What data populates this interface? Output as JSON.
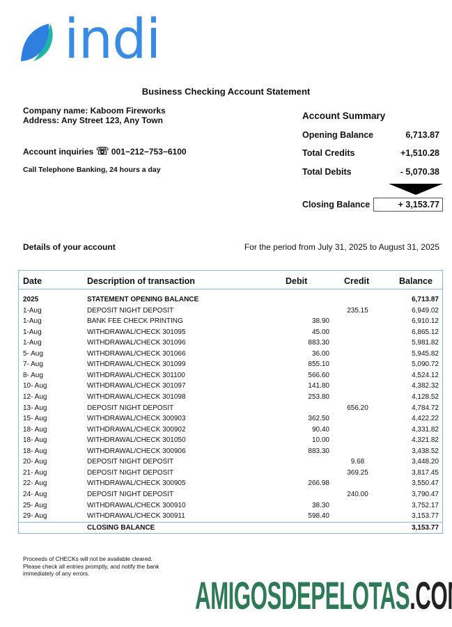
{
  "brand": {
    "name": "indi",
    "leaf_color": "#2f7fe0",
    "leaf_accent": "#1fb5a8",
    "text_color": "#3a8be3"
  },
  "title": "Business Checking Account Statement",
  "company": {
    "name_line": "Company name: Kaboom Fireworks",
    "address_line": "Address: Any Street 123, Any Town"
  },
  "inquiries": {
    "label": "Account inquiries",
    "icon": "telephone-icon",
    "phone": "001−212−753−6100",
    "note": "Call Telephone Banking, 24 hours a day"
  },
  "summary": {
    "heading": "Account Summary",
    "opening_label": "Opening Balance",
    "opening_value": "6,713.87",
    "credits_label": "Total Credits",
    "credits_value": "+1,510.28",
    "debits_label": "Total Debits",
    "debits_value": "- 5,070.38",
    "closing_label": "Closing Balance",
    "closing_value": "+ 3,153.77"
  },
  "details": {
    "heading": "Details of your account",
    "period": "For the period from July 31, 2025 to August 31, 2025"
  },
  "table": {
    "headers": {
      "date": "Date",
      "desc": "Description of transaction",
      "debit": "Debit",
      "credit": "Credit",
      "balance": "Balance"
    },
    "opening": {
      "date": "2025",
      "desc": "STATEMENT OPENING BALANCE",
      "balance": "6,713.87"
    },
    "rows": [
      {
        "date": "1-Aug",
        "desc": "DEPOSIT NIGHT DEPOSIT",
        "debit": "",
        "credit": "235.15",
        "balance": "6,949.02"
      },
      {
        "date": "1-Aug",
        "desc": "BANK FEE CHECK PRINTING",
        "debit": "38.90",
        "credit": "",
        "balance": "6,910.12"
      },
      {
        "date": "1-Aug",
        "desc": "WITHDRAWAL/CHECK 301095",
        "debit": "45.00",
        "credit": "",
        "balance": "6,865.12"
      },
      {
        "date": "1-Aug",
        "desc": "WITHDRAWAL/CHECK 301096",
        "debit": "883.30",
        "credit": "",
        "balance": "5,981.82"
      },
      {
        "date": "5- Aug",
        "desc": "WITHDRAWAL/CHECK 301066",
        "debit": "36.00",
        "credit": "",
        "balance": "5,945.82"
      },
      {
        "date": "7- Aug",
        "desc": "WITHDRAWAL/CHECK 301099",
        "debit": "855.10",
        "credit": "",
        "balance": "5,090.72"
      },
      {
        "date": "8- Aug",
        "desc": "WITHDRAWAL/CHECK 301100",
        "debit": "566.60",
        "credit": "",
        "balance": "4,524.12"
      },
      {
        "date": "10- Aug",
        "desc": "WITHDRAWAL/CHECK 301097",
        "debit": "141.80",
        "credit": "",
        "balance": "4,382.32"
      },
      {
        "date": "12- Aug",
        "desc": "WITHDRAWAL/CHECK 301098",
        "debit": "253.80",
        "credit": "",
        "balance": "4,128.52"
      },
      {
        "date": "13- Aug",
        "desc": "DEPOSIT NIGHT DEPOSIT",
        "debit": "",
        "credit": "656.20",
        "balance": "4,784.72"
      },
      {
        "date": "15- Aug",
        "desc": "WITHDRAWAL/CHECK 300903",
        "debit": "362.50",
        "credit": "",
        "balance": "4,422.22"
      },
      {
        "date": "18- Aug",
        "desc": "WITHDRAWAL/CHECK 300902",
        "debit": "90.40",
        "credit": "",
        "balance": "4,331.82"
      },
      {
        "date": "18- Aug",
        "desc": "WITHDRAWAL/CHECK 301050",
        "debit": "10.00",
        "credit": "",
        "balance": "4,321.82"
      },
      {
        "date": "18- Aug",
        "desc": "WITHDRAWAL/CHECK 300906",
        "debit": "883.30",
        "credit": "",
        "balance": "3,438.52"
      },
      {
        "date": "20- Aug",
        "desc": "DEPOSIT NIGHT DEPOSIT",
        "debit": "",
        "credit": "9.68",
        "balance": "3,448.20"
      },
      {
        "date": "21- Aug",
        "desc": "DEPOSIT NIGHT DEPOSIT",
        "debit": "",
        "credit": "369.25",
        "balance": "3,817.45"
      },
      {
        "date": "22- Aug",
        "desc": "WITHDRAWAL/CHECK 300905",
        "debit": "266.98",
        "credit": "",
        "balance": "3,550.47"
      },
      {
        "date": "24- Aug",
        "desc": "DEPOSIT NIGHT DEPOSIT",
        "debit": "",
        "credit": "240.00",
        "balance": "3,790.47"
      },
      {
        "date": "25- Aug",
        "desc": "WITHDRAWAL/CHECK 300910",
        "debit": "38.30",
        "credit": "",
        "balance": "3,752.17"
      },
      {
        "date": "29- Aug",
        "desc": "WITHDRAWAL/CHECK 300911",
        "debit": "598.40",
        "credit": "",
        "balance": "3,153.77"
      }
    ],
    "closing": {
      "desc": "CLOSING BALANCE",
      "balance": "3,153.77"
    }
  },
  "note": "Proceeds of CHECKs will not be available cleared. Please check all entries promptly, and notify the bank immediately of any errors.",
  "watermark": {
    "main": "AMIGOSDEPELOTAS",
    "suffix": ".COM",
    "main_color": "#2e7a58",
    "suffix_color": "#222222"
  }
}
